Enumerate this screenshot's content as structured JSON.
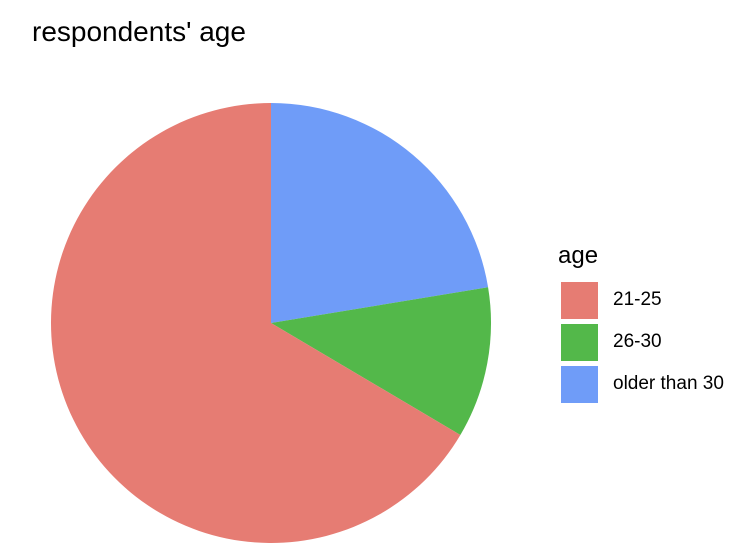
{
  "chart_data": {
    "type": "pie",
    "title": "respondents' age",
    "legend_title": "age",
    "legend_position": "right",
    "categories": [
      "21-25",
      "26-30",
      "older than 30"
    ],
    "values": [
      66.5,
      11.1,
      22.4
    ],
    "colors": [
      "#E67C73",
      "#53B84A",
      "#6F9CF8"
    ],
    "start": "12 o'clock",
    "direction": "clockwise, starting with older than 30"
  }
}
